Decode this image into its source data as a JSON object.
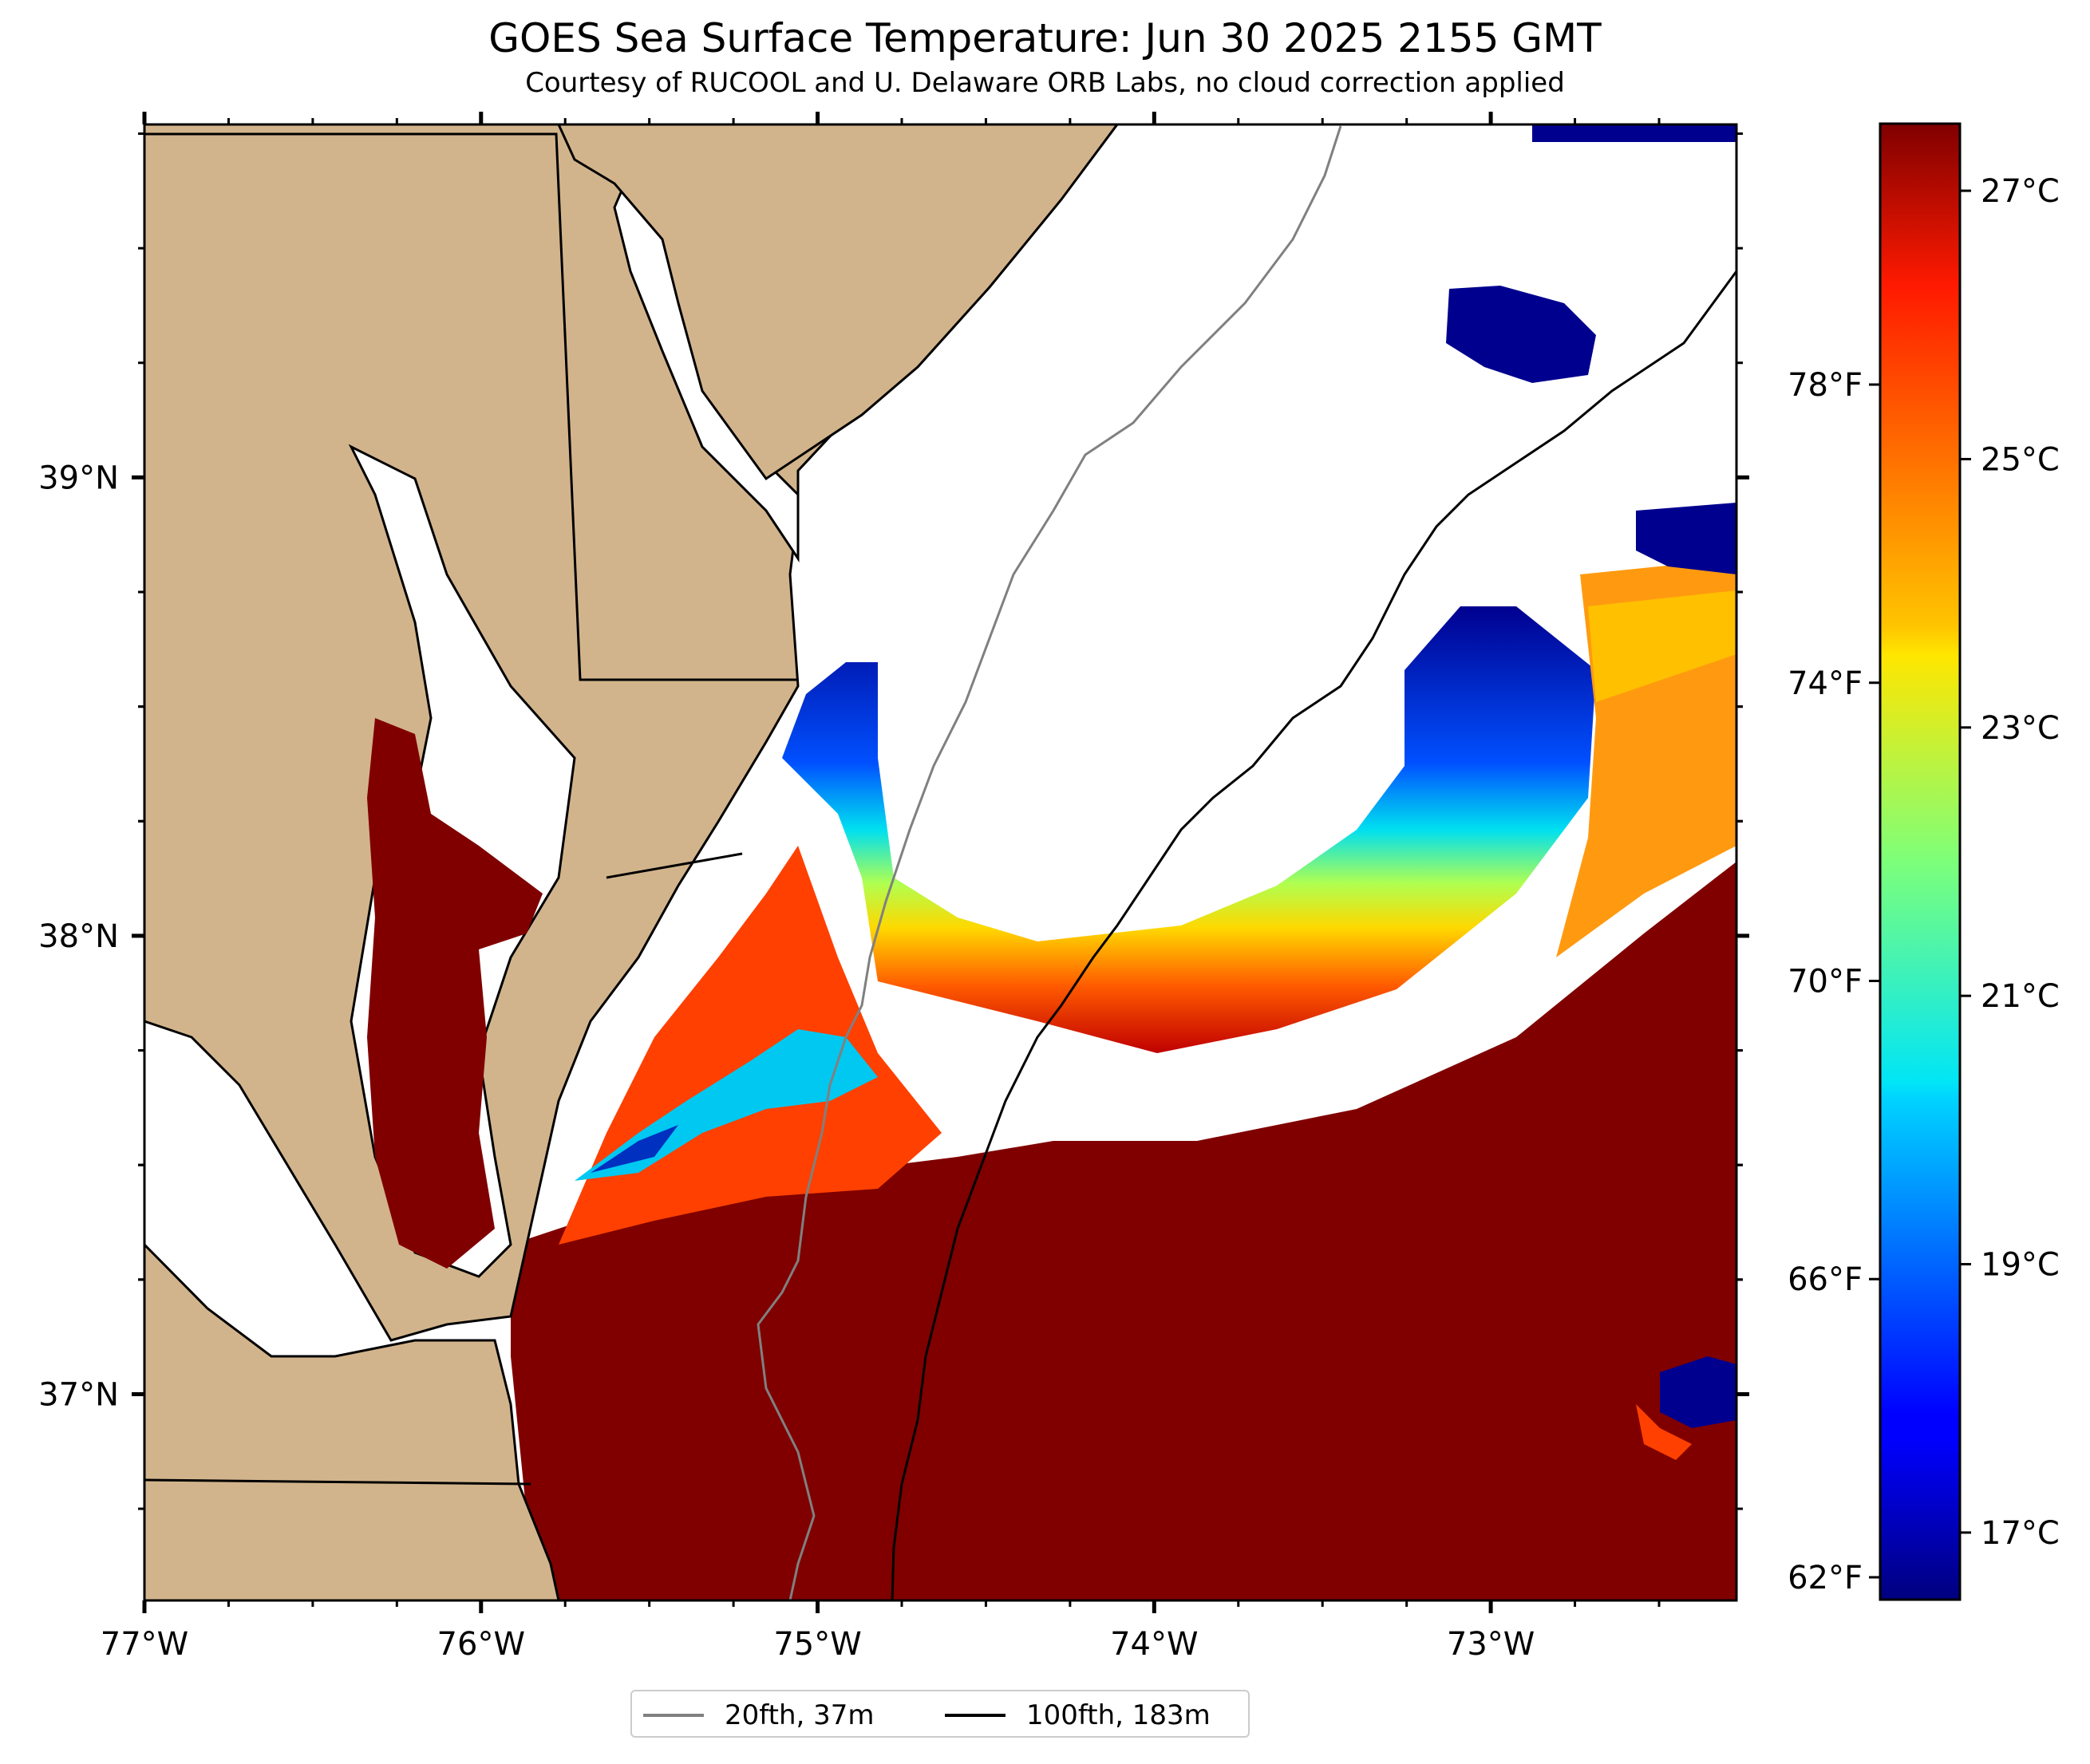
{
  "title": "GOES Sea Surface Temperature: Jun 30 2025 2155 GMT",
  "subtitle": "Courtesy of RUCOOL and U. Delaware ORB Labs, no cloud correction applied",
  "map": {
    "lon_range": [
      -77.0,
      -72.27
    ],
    "lat_range": [
      36.55,
      39.77
    ],
    "lon_ticks": [
      {
        "value": -77,
        "label": "77°W"
      },
      {
        "value": -76,
        "label": "76°W"
      },
      {
        "value": -75,
        "label": "75°W"
      },
      {
        "value": -74,
        "label": "74°W"
      },
      {
        "value": -73,
        "label": "73°W"
      }
    ],
    "lat_ticks": [
      {
        "value": 39,
        "label": "39°N"
      },
      {
        "value": 38,
        "label": "38°N"
      },
      {
        "value": 37,
        "label": "37°N"
      }
    ],
    "colors": {
      "land": "#d2b48c",
      "cloud": "#ffffff",
      "warm_water": "#800000",
      "cold_water": "#00008f",
      "contour_20fth": "#808080",
      "contour_100fth": "#000000"
    }
  },
  "colorbar": {
    "colormap": "jet",
    "celsius_range": [
      16.5,
      27.5
    ],
    "celsius_ticks": [
      {
        "value": 17,
        "label": "17°C"
      },
      {
        "value": 19,
        "label": "19°C"
      },
      {
        "value": 21,
        "label": "21°C"
      },
      {
        "value": 23,
        "label": "23°C"
      },
      {
        "value": 25,
        "label": "25°C"
      },
      {
        "value": 27,
        "label": "27°C"
      }
    ],
    "fahrenheit_ticks": [
      {
        "value": 62,
        "label": "62°F"
      },
      {
        "value": 66,
        "label": "66°F"
      },
      {
        "value": 70,
        "label": "70°F"
      },
      {
        "value": 74,
        "label": "74°F"
      },
      {
        "value": 78,
        "label": "78°F"
      }
    ]
  },
  "legend": [
    {
      "label": "20fth, 37m",
      "color": "#808080"
    },
    {
      "label": "100fth, 183m",
      "color": "#000000"
    }
  ]
}
